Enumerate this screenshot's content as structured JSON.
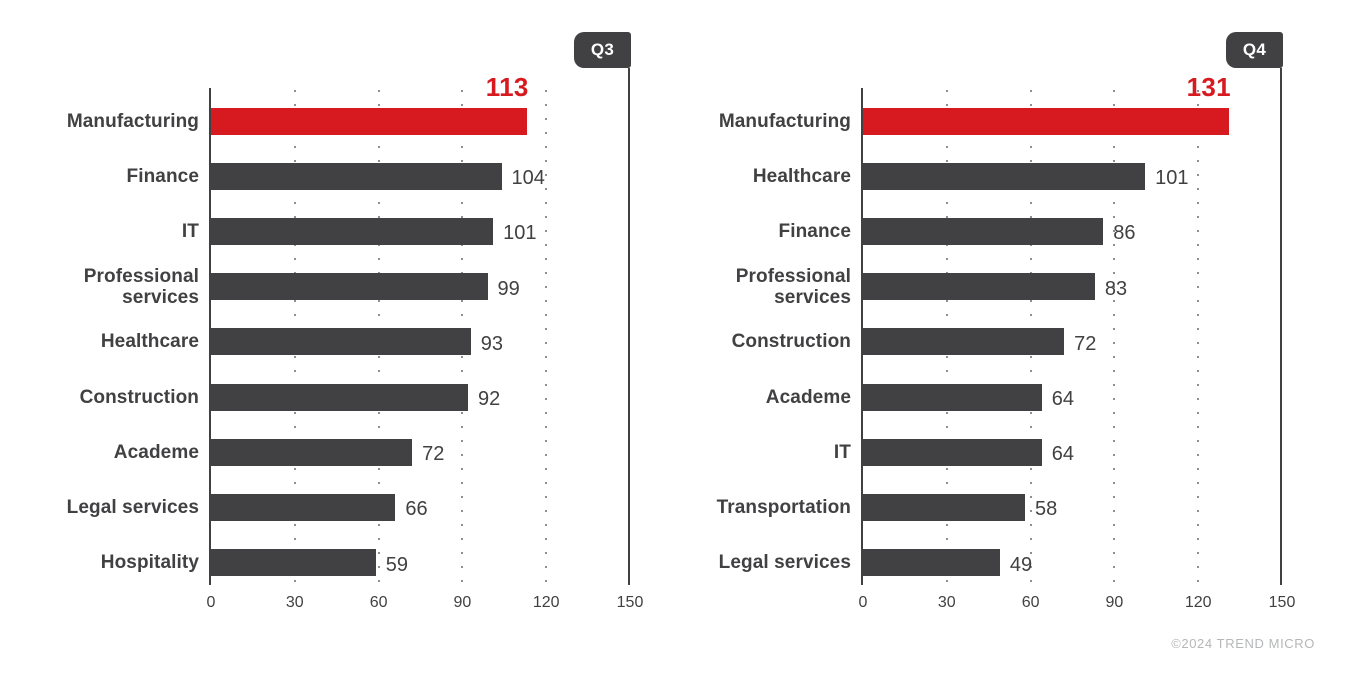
{
  "footer": {
    "copyright": "©2024 TREND MICRO"
  },
  "colors": {
    "bar": "#414042",
    "highlight": "#d71920",
    "axis": "#414042",
    "grid_dots": "#8f8f91",
    "tick_label": "#414042",
    "category_label": "#414042",
    "value_label": "#414042",
    "badge_bg": "#414042",
    "badge_text": "#ffffff",
    "copyright": "#b5b7b9"
  },
  "chart_data": [
    {
      "type": "bar",
      "orientation": "horizontal",
      "title": "Q3",
      "categories": [
        "Manufacturing",
        "Finance",
        "IT",
        "Professional services",
        "Healthcare",
        "Construction",
        "Academe",
        "Legal services",
        "Hospitality"
      ],
      "values": [
        113,
        104,
        101,
        99,
        93,
        92,
        72,
        66,
        59
      ],
      "highlight_index": 0,
      "highlight_value": 113,
      "xlim": [
        0,
        150
      ],
      "xticks": [
        0,
        30,
        60,
        90,
        120,
        150
      ],
      "grid": "dotted-vertical",
      "legend": "none"
    },
    {
      "type": "bar",
      "orientation": "horizontal",
      "title": "Q4",
      "categories": [
        "Manufacturing",
        "Healthcare",
        "Finance",
        "Professional services",
        "Construction",
        "Academe",
        "IT",
        "Transportation",
        "Legal services"
      ],
      "values": [
        131,
        101,
        86,
        83,
        72,
        64,
        64,
        58,
        49
      ],
      "highlight_index": 0,
      "highlight_value": 131,
      "xlim": [
        0,
        150
      ],
      "xticks": [
        0,
        30,
        60,
        90,
        120,
        150
      ],
      "grid": "dotted-vertical",
      "legend": "none"
    }
  ]
}
